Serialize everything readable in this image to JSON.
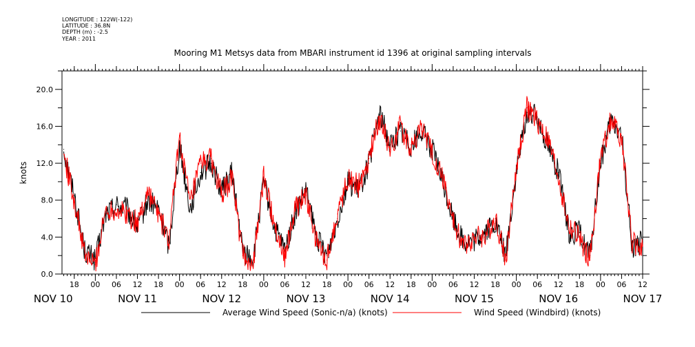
{
  "header": {
    "longitude": "LONGITUDE : 122W(-122)",
    "latitude": "LATITUDE : 36.8N",
    "depth": "DEPTH (m) : -2.5",
    "year": "YEAR : 2011"
  },
  "chart_data": {
    "type": "line",
    "title": "Mooring M1 Metsys data from MBARI instrument id 1396 at original sampling intervals",
    "ylabel": "knots",
    "xlabel": "",
    "ylim": [
      0,
      22
    ],
    "yticks": [
      "0.0",
      "4.0",
      "8.0",
      "12.0",
      "16.0",
      "20.0"
    ],
    "x_range_hours_from_nov10_00": [
      14.5,
      180
    ],
    "hour_ticks": [
      "18",
      "00",
      "06",
      "12",
      "18",
      "00",
      "06",
      "12",
      "18",
      "00",
      "06",
      "12",
      "18",
      "00",
      "06",
      "12",
      "18",
      "00",
      "06",
      "12",
      "18",
      "00",
      "06",
      "12",
      "18",
      "00",
      "06",
      "12"
    ],
    "date_labels": [
      "NOV 10",
      "NOV 11",
      "NOV 12",
      "NOV 13",
      "NOV 14",
      "NOV 15",
      "NOV 16",
      "NOV 17"
    ],
    "x": [
      "2011-11-10 15:00",
      "2011-11-10 18:00",
      "2011-11-10 21:00",
      "2011-11-11 00:00",
      "2011-11-11 03:00",
      "2011-11-11 06:00",
      "2011-11-11 09:00",
      "2011-11-11 12:00",
      "2011-11-11 15:00",
      "2011-11-11 18:00",
      "2011-11-11 21:00",
      "2011-11-12 00:00",
      "2011-11-12 03:00",
      "2011-11-12 06:00",
      "2011-11-12 09:00",
      "2011-11-12 12:00",
      "2011-11-12 15:00",
      "2011-11-12 18:00",
      "2011-11-12 21:00",
      "2011-11-13 00:00",
      "2011-11-13 03:00",
      "2011-11-13 06:00",
      "2011-11-13 09:00",
      "2011-11-13 12:00",
      "2011-11-13 15:00",
      "2011-11-13 18:00",
      "2011-11-13 21:00",
      "2011-11-14 00:00",
      "2011-11-14 03:00",
      "2011-11-14 06:00",
      "2011-11-14 09:00",
      "2011-11-14 12:00",
      "2011-11-14 15:00",
      "2011-11-14 18:00",
      "2011-11-14 21:00",
      "2011-11-15 00:00",
      "2011-11-15 03:00",
      "2011-11-15 06:00",
      "2011-11-15 09:00",
      "2011-11-15 12:00",
      "2011-11-15 15:00",
      "2011-11-15 18:00",
      "2011-11-15 21:00",
      "2011-11-16 00:00",
      "2011-11-16 03:00",
      "2011-11-16 06:00",
      "2011-11-16 09:00",
      "2011-11-16 12:00",
      "2011-11-16 15:00",
      "2011-11-16 18:00",
      "2011-11-16 21:00",
      "2011-11-17 00:00",
      "2011-11-17 03:00",
      "2011-11-17 06:00",
      "2011-11-17 09:00",
      "2011-11-17 12:00"
    ],
    "series": [
      {
        "name": "Average Wind Speed (Sonic-n/a) (knots)",
        "color": "#000000",
        "values": [
          13.5,
          8.5,
          2.5,
          1.5,
          6.5,
          7.5,
          7.0,
          5.0,
          8.0,
          7.0,
          3.0,
          14.0,
          7.0,
          11.0,
          12.0,
          9.0,
          11.0,
          2.5,
          1.5,
          10.0,
          5.0,
          2.5,
          6.5,
          9.0,
          4.0,
          2.0,
          6.0,
          10.0,
          9.0,
          12.0,
          17.5,
          14.0,
          15.5,
          14.0,
          15.5,
          13.5,
          10.0,
          6.0,
          3.5,
          3.5,
          4.5,
          5.5,
          2.0,
          11.0,
          17.5,
          17.0,
          14.0,
          11.0,
          4.5,
          4.5,
          2.0,
          12.0,
          16.5,
          15.0,
          3.0,
          3.5
        ]
      },
      {
        "name": "Wind Speed (Windbird) (knots)",
        "color": "#ff0000",
        "values": [
          13.0,
          8.0,
          2.0,
          1.0,
          7.0,
          7.0,
          6.5,
          5.5,
          9.0,
          6.5,
          3.5,
          15.0,
          7.5,
          12.0,
          12.5,
          8.5,
          10.5,
          2.0,
          1.0,
          10.5,
          5.5,
          2.0,
          7.0,
          8.5,
          3.5,
          1.5,
          6.5,
          10.5,
          9.5,
          12.5,
          17.0,
          13.5,
          16.0,
          13.5,
          16.0,
          13.0,
          10.5,
          5.5,
          3.0,
          4.0,
          4.0,
          6.0,
          1.5,
          11.5,
          18.0,
          16.5,
          14.5,
          10.5,
          5.0,
          4.0,
          1.5,
          12.5,
          17.0,
          14.5,
          3.5,
          3.0
        ]
      }
    ],
    "legend": [
      "Average Wind Speed (Sonic-n/a) (knots)",
      "Wind Speed (Windbird) (knots)"
    ],
    "legend_placement": "bottom",
    "grid": false
  }
}
